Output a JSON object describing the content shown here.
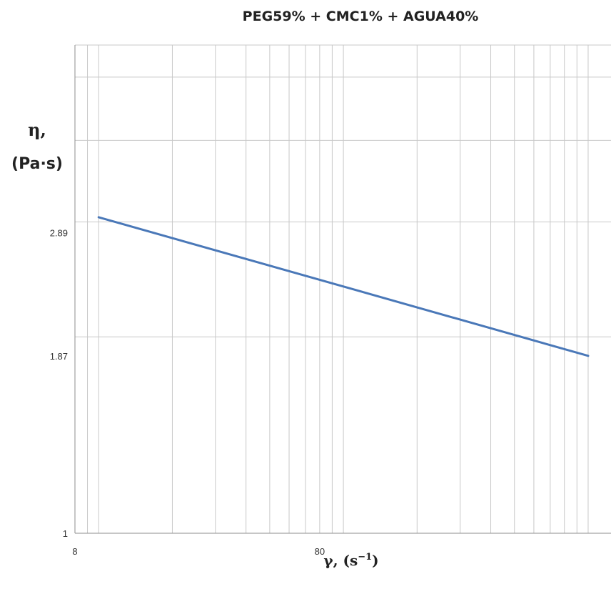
{
  "chart_data": {
    "type": "line",
    "title": "PEG59% + CMC1% + AGUA40%",
    "xlabel_main": "γ, (s",
    "xlabel_sup": "−1",
    "xlabel_end": ")",
    "ylabel_line1": "η,",
    "ylabel_line2": "(Pa·s)",
    "x_scale": "log",
    "y_scale": "log",
    "xlim": [
      8,
      1240
    ],
    "ylim": [
      1,
      5.6
    ],
    "x_ticks": [
      8,
      80
    ],
    "x_tick_labels": [
      "8",
      "80"
    ],
    "y_ticks": [
      1,
      1.87,
      2.89
    ],
    "y_tick_labels": [
      "1",
      "1.87",
      "2.89"
    ],
    "grid": true,
    "series": [
      {
        "color": "#4a78b8",
        "x": [
          10,
          1000
        ],
        "y": [
          3.05,
          1.87
        ]
      }
    ]
  }
}
